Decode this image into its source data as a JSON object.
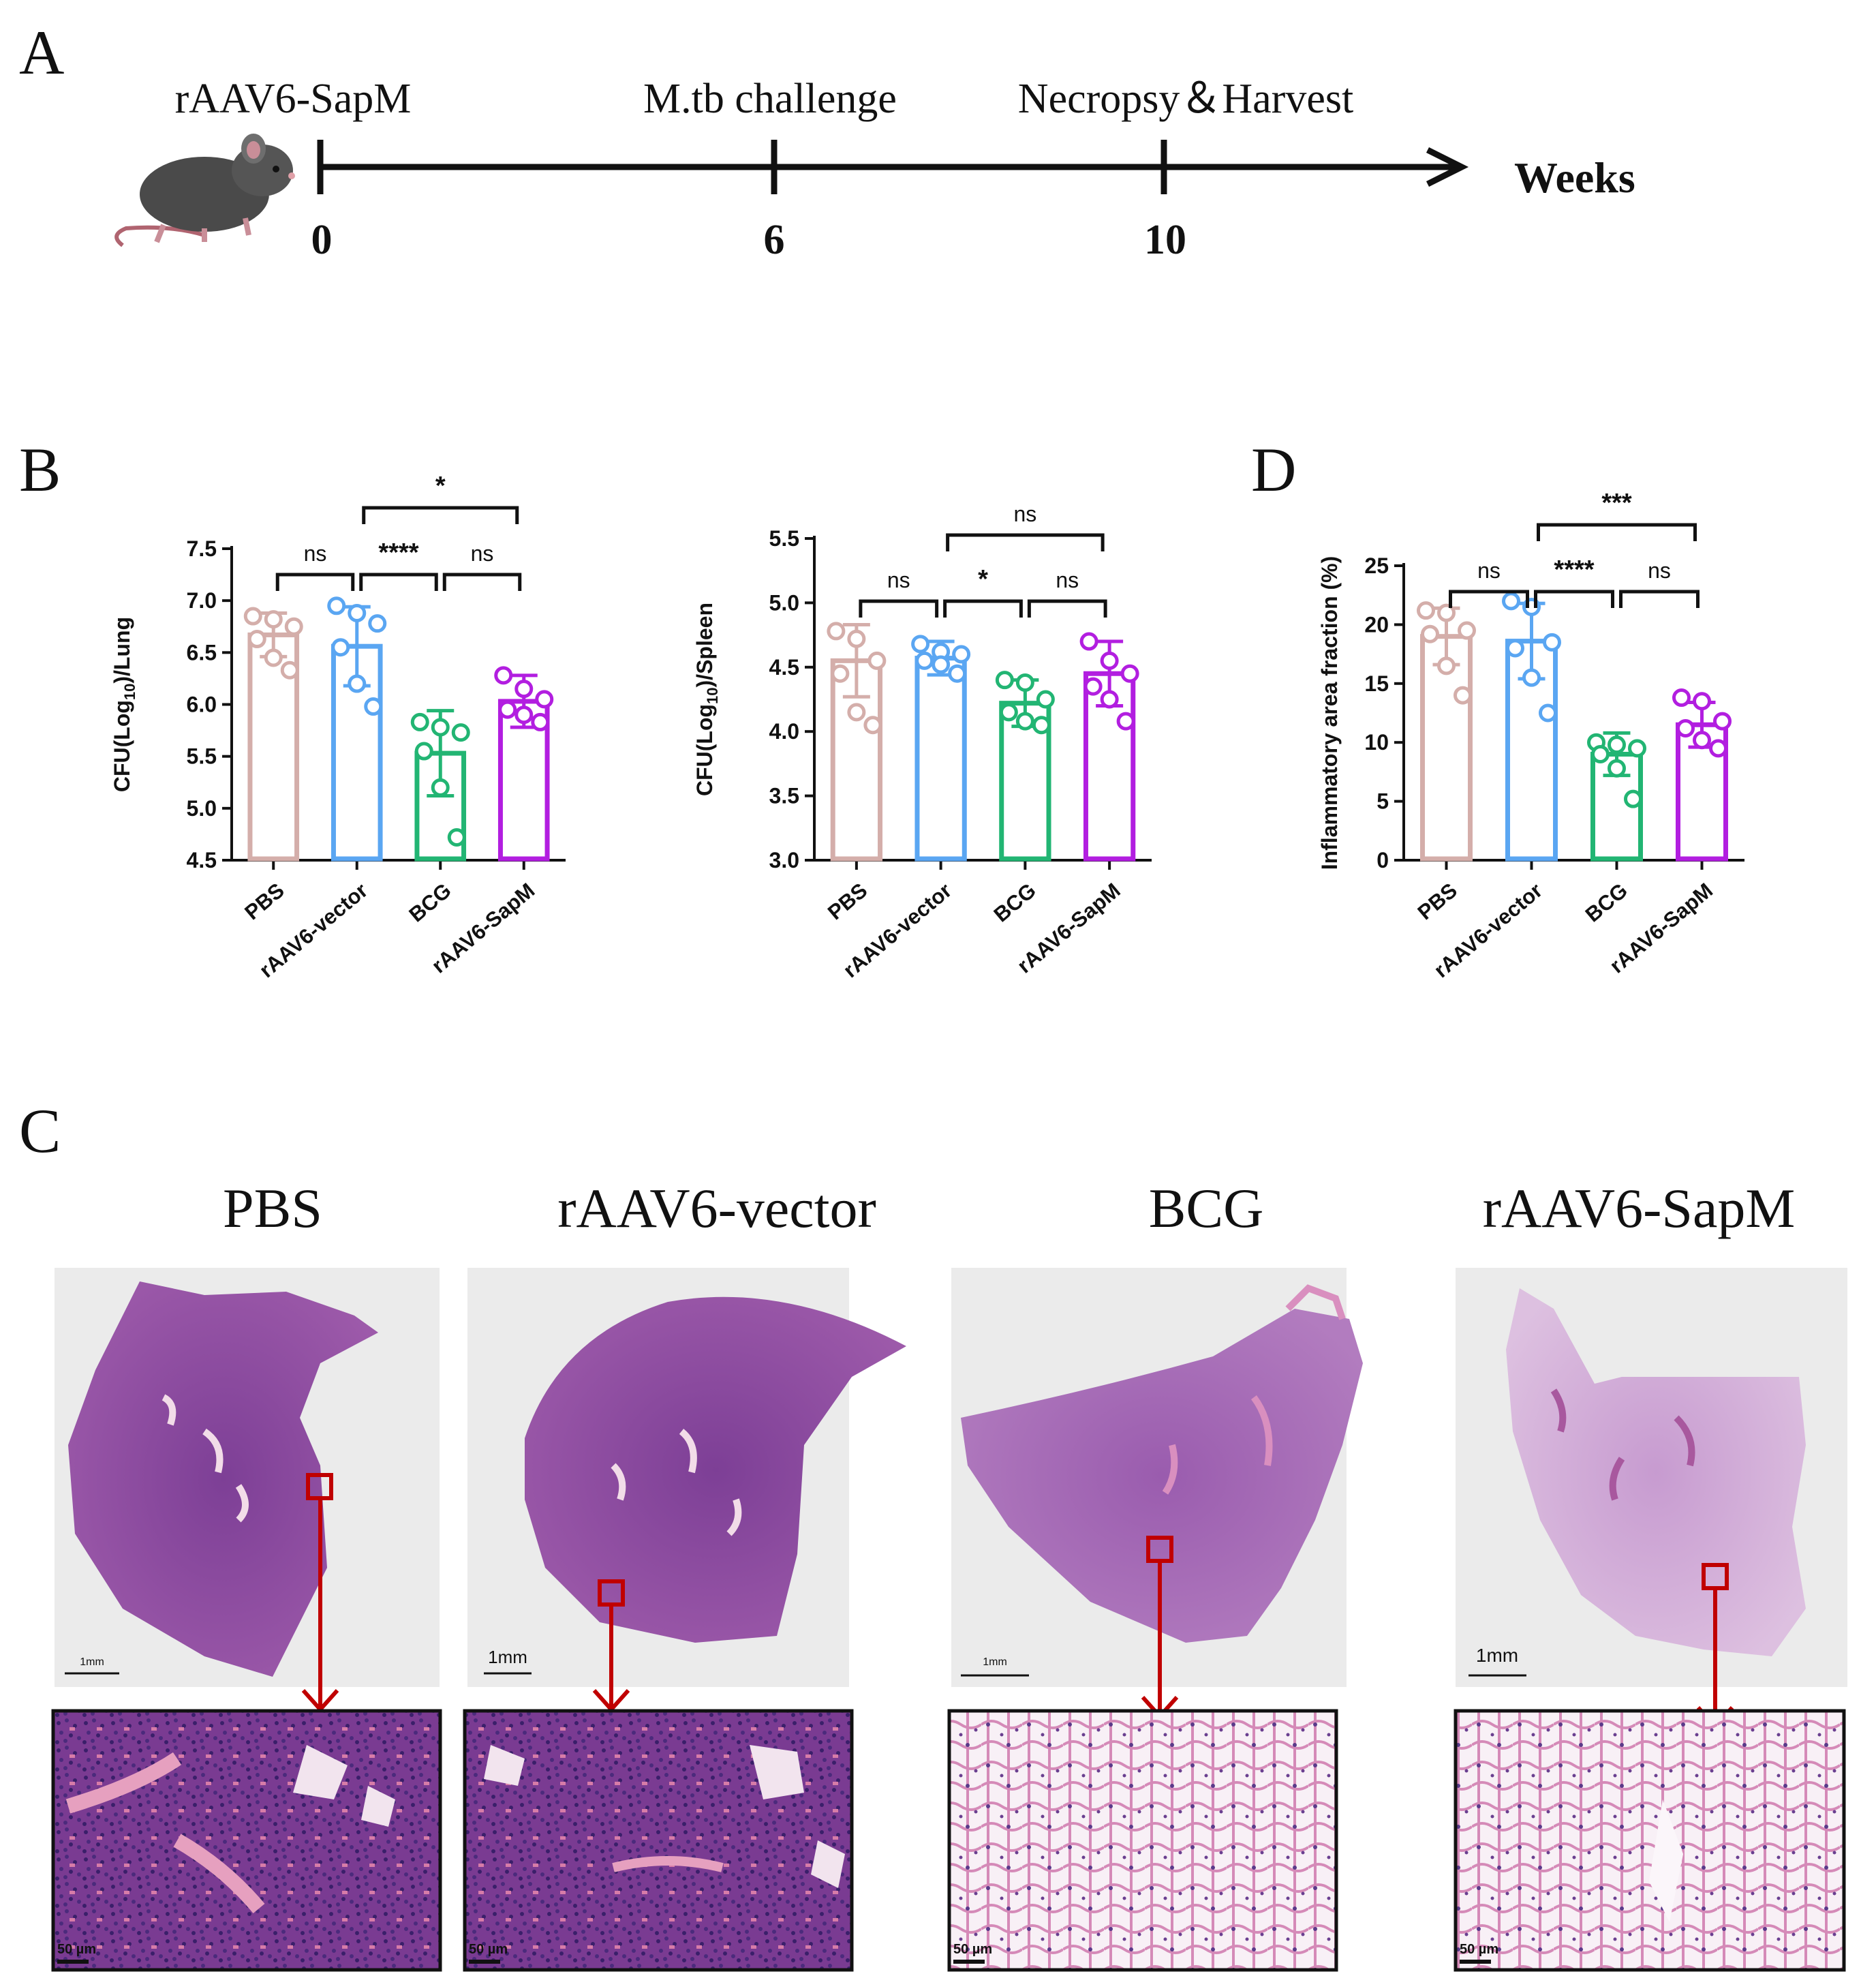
{
  "panel_labels": {
    "a": "A",
    "b": "B",
    "c": "C",
    "d": "D"
  },
  "timeline": {
    "events": [
      {
        "label": "rAAV6-SapM",
        "tick": "0"
      },
      {
        "label": "M.tb challenge",
        "tick": "6"
      },
      {
        "label": "Necropsy＆Harvest",
        "tick": "10"
      }
    ],
    "axis_label": "Weeks",
    "icon": "mouse-icon"
  },
  "colors": {
    "PBS": "#d4aeaa",
    "rAAV6-vector": "#5aa6f2",
    "BCG": "#22b573",
    "rAAV6-SapM": "#b21ee0",
    "arrow": "#c00000"
  },
  "chart_data": [
    {
      "id": "lung",
      "type": "bar",
      "categories": [
        "PBS",
        "rAAV6-vector",
        "BCG",
        "rAAV6-SapM"
      ],
      "values": [
        6.67,
        6.56,
        5.53,
        6.03
      ],
      "error": [
        0.21,
        0.38,
        0.41,
        0.25
      ],
      "points": [
        [
          6.85,
          6.82,
          6.75,
          6.63,
          6.45,
          6.33
        ],
        [
          6.95,
          6.88,
          6.78,
          6.55,
          6.2,
          5.98
        ],
        [
          5.83,
          5.78,
          5.73,
          5.55,
          5.2,
          4.72
        ],
        [
          6.28,
          6.15,
          6.05,
          5.95,
          5.9,
          5.83
        ]
      ],
      "ylabel_main": "CFU(Log",
      "ylabel_sub": "10",
      "ylabel_tail": ")/Lung",
      "ylim": [
        4.5,
        7.5
      ],
      "yticks": [
        "4.5",
        "5.0",
        "5.5",
        "6.0",
        "6.5",
        "7.0",
        "7.5"
      ],
      "comparisons": [
        {
          "a": 0,
          "b": 1,
          "label": "ns",
          "level": 1
        },
        {
          "a": 1,
          "b": 2,
          "label": "****",
          "level": 1
        },
        {
          "a": 2,
          "b": 3,
          "label": "ns",
          "level": 1
        },
        {
          "a": 1,
          "b": 3,
          "label": "*",
          "level": 2
        }
      ]
    },
    {
      "id": "spleen",
      "type": "bar",
      "categories": [
        "PBS",
        "rAAV6-vector",
        "BCG",
        "rAAV6-SapM"
      ],
      "values": [
        4.55,
        4.57,
        4.22,
        4.45
      ],
      "error": [
        0.28,
        0.13,
        0.18,
        0.25
      ],
      "points": [
        [
          4.78,
          4.72,
          4.55,
          4.45,
          4.15,
          4.05
        ],
        [
          4.68,
          4.62,
          4.6,
          4.55,
          4.52,
          4.45
        ],
        [
          4.4,
          4.38,
          4.25,
          4.15,
          4.08,
          4.05
        ],
        [
          4.7,
          4.55,
          4.45,
          4.35,
          4.25,
          4.08
        ]
      ],
      "ylabel_main": "CFU(Log",
      "ylabel_sub": "10",
      "ylabel_tail": ")/Spleen",
      "ylim": [
        3.0,
        5.5
      ],
      "yticks": [
        "3.0",
        "3.5",
        "4.0",
        "4.5",
        "5.0",
        "5.5"
      ],
      "comparisons": [
        {
          "a": 0,
          "b": 1,
          "label": "ns",
          "level": 1
        },
        {
          "a": 1,
          "b": 2,
          "label": "*",
          "level": 1
        },
        {
          "a": 2,
          "b": 3,
          "label": "ns",
          "level": 1
        },
        {
          "a": 1,
          "b": 3,
          "label": "ns",
          "level": 2
        }
      ]
    },
    {
      "id": "inflammation",
      "type": "bar",
      "categories": [
        "PBS",
        "rAAV6-vector",
        "BCG",
        "rAAV6-SapM"
      ],
      "values": [
        19.0,
        18.6,
        9.0,
        11.5
      ],
      "error": [
        2.4,
        3.2,
        1.8,
        1.9
      ],
      "points": [
        [
          21.2,
          21.0,
          19.5,
          19.2,
          16.5,
          14.0
        ],
        [
          22.0,
          21.5,
          18.5,
          18.0,
          15.5,
          12.5
        ],
        [
          10.0,
          9.8,
          9.5,
          9.0,
          7.8,
          5.2
        ],
        [
          13.8,
          13.5,
          11.8,
          11.2,
          10.2,
          9.5
        ]
      ],
      "ylabel_main": "Inflammatory area fraction (%)",
      "ylabel_sub": "",
      "ylabel_tail": "",
      "ylim": [
        0,
        25
      ],
      "yticks": [
        "0",
        "5",
        "10",
        "15",
        "20",
        "25"
      ],
      "comparisons": [
        {
          "a": 0,
          "b": 1,
          "label": "ns",
          "level": 1
        },
        {
          "a": 1,
          "b": 2,
          "label": "****",
          "level": 1
        },
        {
          "a": 2,
          "b": 3,
          "label": "ns",
          "level": 1
        },
        {
          "a": 1,
          "b": 3,
          "label": "***",
          "level": 2
        }
      ]
    }
  ],
  "histology": {
    "groups": [
      "PBS",
      "rAAV6-vector",
      "BCG",
      "rAAV6-SapM"
    ],
    "scale_low": [
      "1mm",
      "1mm",
      "1mm",
      "1mm"
    ],
    "scale_high": [
      "50 µm",
      "50 µm",
      "50 µm",
      "50 µm"
    ]
  }
}
